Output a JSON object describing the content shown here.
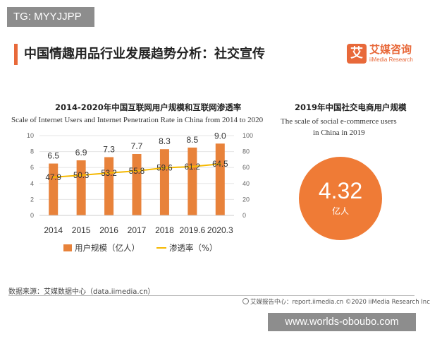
{
  "watermark_top": "TG: MYYJJPP",
  "watermark_bottom": "www.worlds-oboubo.com",
  "header": {
    "title": "中国情趣用品行业发展趋势分析：社交宣传"
  },
  "brand": {
    "mark": "艾",
    "name": "艾媒咨询",
    "subtitle": "iiMedia Research"
  },
  "colors": {
    "accent": "#e8693a",
    "bar": "#e8823a",
    "line": "#f5b800",
    "circle": "#ef7b36"
  },
  "left_chart": {
    "title_cn": "2014-2020年中国互联网用户规模和互联网渗透率",
    "title_en": "Scale of Internet Users and Internet Penetration Rate in China from 2014 to 2020"
  },
  "right_panel": {
    "title_cn": "2019年中国社交电商用户规模",
    "title_en_line1": "The scale of social e-commerce users",
    "title_en_line2": "in China in 2019",
    "value": "4.32",
    "unit": "亿人"
  },
  "legend": {
    "bar_label": "用户规模（亿人）",
    "line_label": "渗透率（%）"
  },
  "chart_data": {
    "type": "bar",
    "title": "2014-2020年中国互联网用户规模和互联网渗透率",
    "subtitle": "Scale of Internet Users and Internet Penetration Rate in China from 2014 to 2020",
    "categories": [
      "2014",
      "2015",
      "2016",
      "2017",
      "2018",
      "2019.6",
      "2020.3"
    ],
    "series": [
      {
        "name": "用户规模（亿人）",
        "type": "bar",
        "axis": "left",
        "values": [
          6.5,
          6.9,
          7.3,
          7.7,
          8.3,
          8.5,
          9.0
        ],
        "labels": [
          "6.5",
          "6.9",
          "7.3",
          "7.7",
          "8.3",
          "8.5",
          "9.0"
        ]
      },
      {
        "name": "渗透率（%）",
        "type": "line",
        "axis": "right",
        "values": [
          47.9,
          50.3,
          53.2,
          55.8,
          59.6,
          61.2,
          64.5
        ],
        "labels": [
          "47.9",
          "50.3",
          "53.2",
          "55.8",
          "59.6",
          "61.2",
          "64.5"
        ]
      }
    ],
    "ylim_left": [
      0,
      10
    ],
    "yticks_left": [
      "0",
      "2",
      "4",
      "6",
      "8",
      "10"
    ],
    "ylim_right": [
      0,
      100
    ],
    "yticks_right": [
      "0",
      "20",
      "40",
      "60",
      "80",
      "100"
    ],
    "grid": true,
    "legend_position": "bottom"
  },
  "footer": {
    "source": "数据来源：艾媒数据中心（data.iimedia.cn）",
    "right": "艾媒报告中心：report.iimedia.cn    ©2020  iiMedia Research  Inc"
  }
}
